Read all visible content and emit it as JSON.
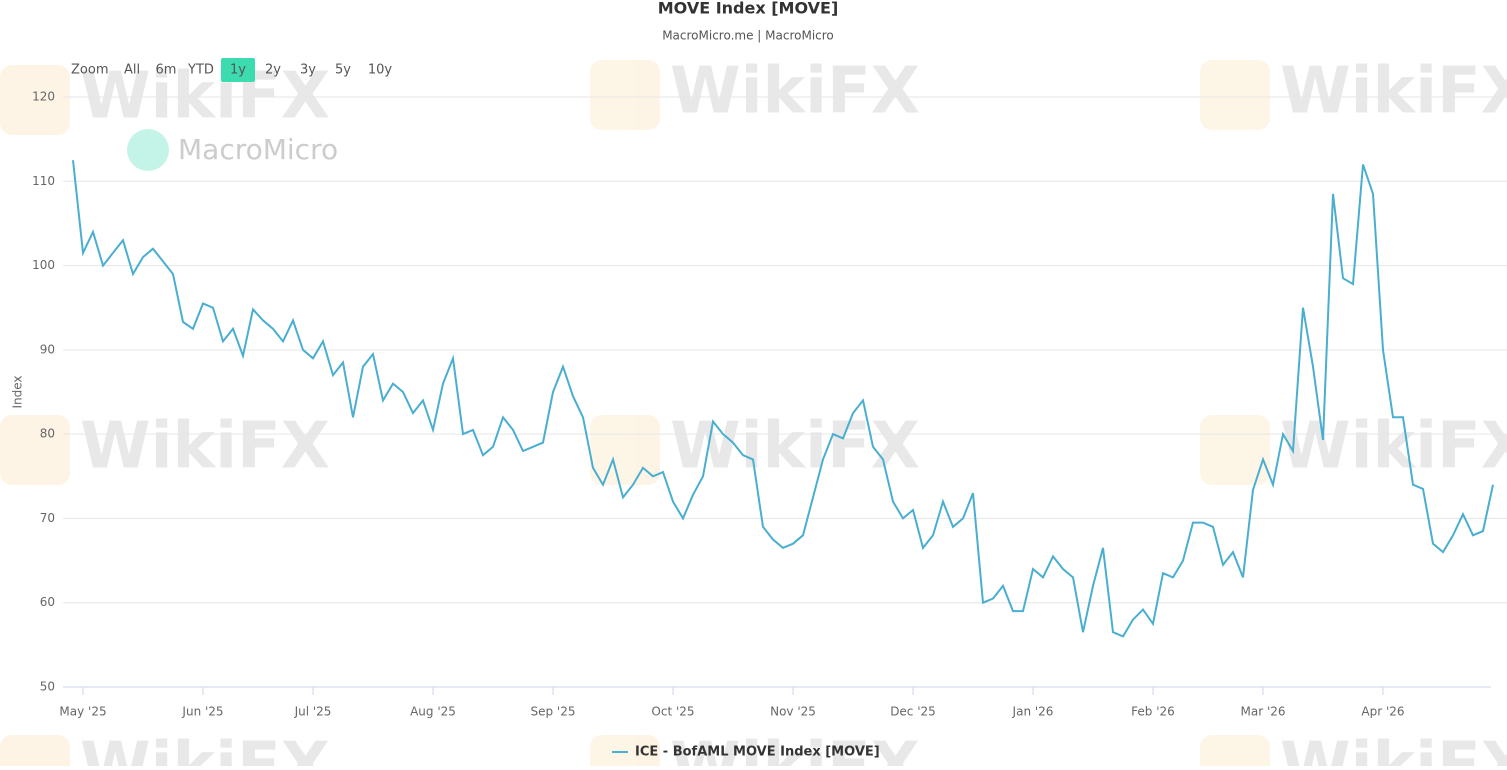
{
  "chart_data": {
    "type": "line",
    "title": "MOVE Index [MOVE]",
    "subtitle": "MacroMicro.me | MacroMicro",
    "y_label": "Index",
    "watermarks": [
      "MacroMicro",
      "WikiFX"
    ],
    "range_selector": {
      "label": "Zoom",
      "buttons": [
        "All",
        "6m",
        "YTD",
        "1y",
        "2y",
        "3y",
        "5y",
        "10y"
      ],
      "selected_index": 3
    },
    "categories": [
      null,
      "May '25",
      null,
      null,
      null,
      null,
      null,
      null,
      null,
      null,
      null,
      null,
      null,
      "Jun '25",
      null,
      null,
      null,
      null,
      null,
      null,
      null,
      null,
      null,
      null,
      "Jul '25",
      null,
      null,
      null,
      null,
      null,
      null,
      null,
      null,
      null,
      null,
      null,
      "Aug '25",
      null,
      null,
      null,
      null,
      null,
      null,
      null,
      null,
      null,
      null,
      null,
      "Sep '25",
      null,
      null,
      null,
      null,
      null,
      null,
      null,
      null,
      null,
      null,
      null,
      "Oct '25",
      null,
      null,
      null,
      null,
      null,
      null,
      null,
      null,
      null,
      null,
      null,
      "Nov '25",
      null,
      null,
      null,
      null,
      null,
      null,
      null,
      null,
      null,
      null,
      null,
      "Dec '25",
      null,
      null,
      null,
      null,
      null,
      null,
      null,
      null,
      null,
      null,
      null,
      "Jan '26",
      null,
      null,
      null,
      null,
      null,
      null,
      null,
      null,
      null,
      null,
      null,
      "Feb '26",
      null,
      null,
      null,
      null,
      null,
      null,
      null,
      null,
      null,
      null,
      "Mar '26",
      null,
      null,
      null,
      null,
      null,
      null,
      null,
      null,
      null,
      null,
      null,
      "Apr '26",
      null,
      null,
      null,
      null,
      null,
      null,
      null,
      null,
      null,
      null,
      null
    ],
    "series": [
      {
        "name": "ICE - BofAML MOVE Index [MOVE]",
        "color": "#4aaed1",
        "values": [
          112.5,
          101.5,
          104,
          100,
          101.5,
          103,
          99,
          101,
          102,
          100.5,
          99,
          93.3,
          92.5,
          95.5,
          95,
          91,
          92.5,
          89.3,
          94.8,
          93.5,
          92.5,
          91,
          93.5,
          90,
          89,
          91,
          87,
          88.5,
          82,
          88,
          89.5,
          84,
          86,
          85,
          82.5,
          84,
          80.5,
          86,
          89,
          80,
          80.5,
          77.5,
          78.5,
          82,
          80.5,
          78,
          78.5,
          79,
          85,
          88,
          84.5,
          82,
          76,
          74,
          77,
          72.5,
          74,
          76,
          75,
          75.5,
          72,
          70,
          72.8,
          75,
          81.5,
          80,
          79,
          77.5,
          77,
          69,
          67.5,
          66.5,
          67,
          68,
          72.5,
          77,
          80,
          79.5,
          82.5,
          84,
          78.5,
          77,
          72,
          70,
          71,
          66.5,
          68,
          72,
          69,
          70,
          73,
          60,
          60.5,
          62,
          59,
          59,
          64,
          63,
          65.5,
          64,
          63,
          56.5,
          62,
          66.5,
          56.5,
          56,
          58,
          59.2,
          57.5,
          63.5,
          63,
          65,
          69.5,
          69.5,
          69,
          64.5,
          66,
          63,
          73.4,
          77,
          74,
          80,
          78,
          95,
          88,
          79.3,
          108.5,
          98.5,
          97.8,
          112,
          108.5,
          90,
          82,
          82,
          74,
          73.5,
          67,
          66,
          68,
          70.5,
          68,
          68.5,
          74
        ]
      }
    ],
    "ylim": [
      50,
      120
    ],
    "yticks": [
      50,
      60,
      70,
      80,
      90,
      100,
      110,
      120
    ],
    "grid": true
  }
}
